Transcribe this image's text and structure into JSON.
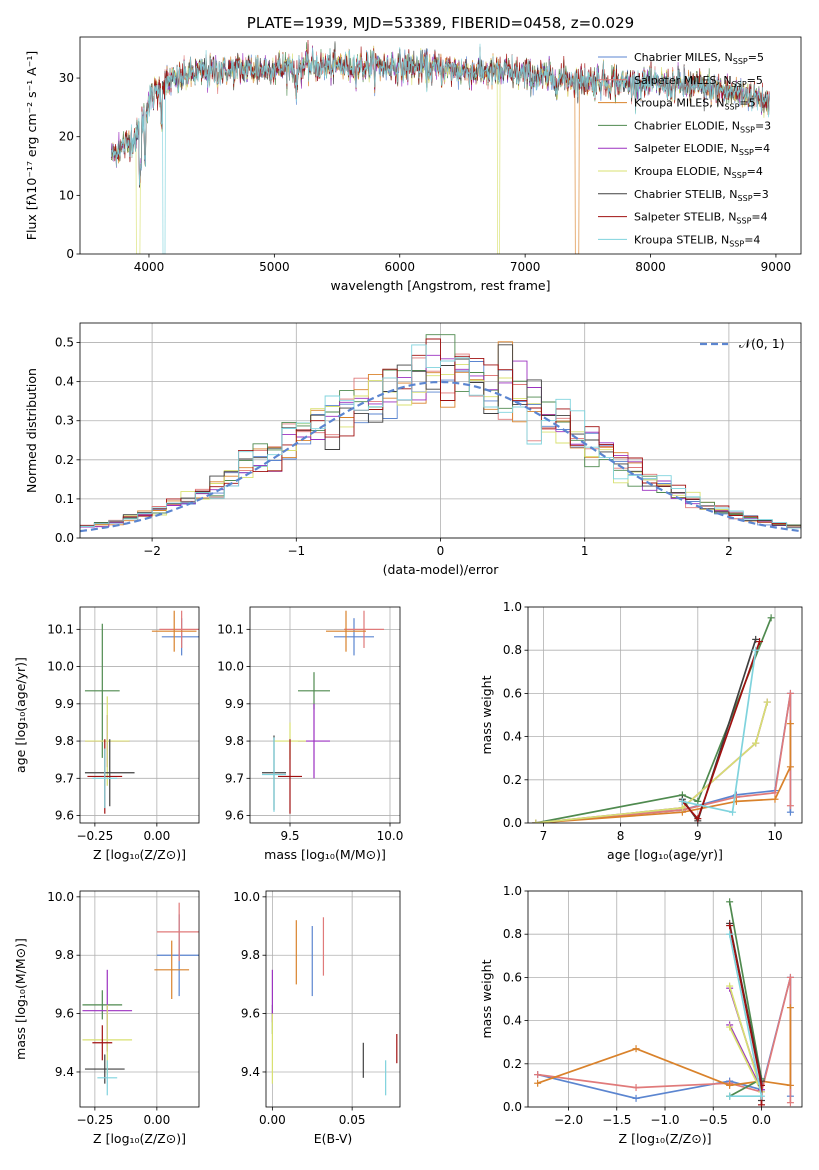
{
  "chart_data": [
    {
      "id": "spectrum",
      "type": "line",
      "title": "PLATE=1939, MJD=53389, FIBERID=0458, z=0.029",
      "xlabel": "wavelength [Angstrom, rest frame]",
      "ylabel": "Flux [fλ10⁻¹⁷ erg cm⁻² s⁻¹ A⁻¹]",
      "xlim": [
        3450,
        9200
      ],
      "ylim": [
        0,
        37
      ],
      "xticks": [
        4000,
        5000,
        6000,
        7000,
        8000,
        9000
      ],
      "yticks": [
        0,
        10,
        20,
        30
      ],
      "legend_position": "top-right",
      "continuum": {
        "x": [
          3700,
          3900,
          4000,
          4100,
          4400,
          4800,
          5200,
          5600,
          6000,
          6400,
          6800,
          7200,
          7600,
          8000,
          8400,
          8800,
          8950
        ],
        "y": [
          17,
          20,
          26,
          29,
          31,
          31.5,
          32,
          32,
          32,
          31.5,
          31,
          30,
          29.5,
          29,
          28.5,
          27,
          26
        ]
      },
      "series": [
        {
          "name": "Chabrier MILES, N",
          "sub": "SSP",
          "suffix": "=5",
          "color": "#5b85d0"
        },
        {
          "name": "Salpeter MILES, N",
          "sub": "SSP",
          "suffix": "=5",
          "color": "#e07a7a"
        },
        {
          "name": "Kroupa MILES, N",
          "sub": "SSP",
          "suffix": "=5",
          "color": "#d9822b"
        },
        {
          "name": "Chabrier ELODIE, N",
          "sub": "SSP",
          "suffix": "=3",
          "color": "#4f8a4f"
        },
        {
          "name": "Salpeter ELODIE, N",
          "sub": "SSP",
          "suffix": "=4",
          "color": "#9b30c0"
        },
        {
          "name": "Kroupa ELODIE, N",
          "sub": "SSP",
          "suffix": "=4",
          "color": "#d8e070"
        },
        {
          "name": "Chabrier STELIB, N",
          "sub": "SSP",
          "suffix": "=3",
          "color": "#404040"
        },
        {
          "name": "Salpeter STELIB, N",
          "sub": "SSP",
          "suffix": "=4",
          "color": "#a01010"
        },
        {
          "name": "Kroupa STELIB, N",
          "sub": "SSP",
          "suffix": "=4",
          "color": "#7fd3dd"
        }
      ]
    },
    {
      "id": "residuals",
      "type": "histogram",
      "xlabel": "(data-model)/error",
      "ylabel": "Normed distribution",
      "xlim": [
        -2.5,
        2.5
      ],
      "ylim": [
        0,
        0.55
      ],
      "xticks": [
        -2,
        -1,
        0,
        1,
        2
      ],
      "yticks": [
        0.0,
        0.1,
        0.2,
        0.3,
        0.4,
        0.5
      ],
      "grid": true,
      "reference_label": "𝒩(0, 1)",
      "reference_color": "#5b85d0",
      "legend_position": "top-right",
      "bin_width": 0.1
    },
    {
      "id": "age_vs_Z",
      "type": "scatter",
      "xlabel": "Z [log₁₀(Z/Z⊙)]",
      "ylabel": "age  [log₁₀(age/yr)]",
      "xlim": [
        -0.31,
        0.17
      ],
      "ylim": [
        9.58,
        10.16
      ],
      "xticks": [
        -0.25,
        0.0
      ],
      "xtick_labels": [
        "−0.25",
        "0.00"
      ],
      "yticks": [
        9.6,
        9.7,
        9.8,
        9.9,
        10.0,
        10.1
      ],
      "grid": true,
      "points": [
        {
          "x": 0.1,
          "y": 10.08,
          "xerr": 0.08,
          "yerr": 0.05,
          "color": "#5b85d0"
        },
        {
          "x": 0.1,
          "y": 10.1,
          "xerr": 0.09,
          "yerr": 0.05,
          "color": "#e07a7a"
        },
        {
          "x": 0.07,
          "y": 10.095,
          "xerr": 0.09,
          "yerr": 0.055,
          "color": "#d9822b"
        },
        {
          "x": -0.22,
          "y": 9.935,
          "xerr": 0.07,
          "yerr": 0.18,
          "color": "#4f8a4f"
        },
        {
          "x": -0.2,
          "y": 9.8,
          "xerr": 0.09,
          "yerr": 0.07,
          "color": "#9b30c0"
        },
        {
          "x": -0.2,
          "y": 9.8,
          "xerr": 0.09,
          "yerr": 0.12,
          "color": "#d8e070"
        },
        {
          "x": -0.19,
          "y": 9.715,
          "xerr": 0.1,
          "yerr": 0.09,
          "color": "#404040"
        },
        {
          "x": -0.21,
          "y": 9.705,
          "xerr": 0.07,
          "yerr": 0.1,
          "color": "#a01010"
        },
        {
          "x": -0.21,
          "y": 9.7,
          "xerr": 0.05,
          "yerr": 0.08,
          "color": "#7fd3dd"
        }
      ]
    },
    {
      "id": "age_vs_mass",
      "type": "scatter",
      "xlabel": "mass [log₁₀(M/M⊙)]",
      "ylabel": "",
      "xlim": [
        9.3,
        10.05
      ],
      "ylim": [
        9.58,
        10.16
      ],
      "xticks": [
        9.5,
        10.0
      ],
      "xtick_labels": [
        "9.5",
        "10.0"
      ],
      "yticks": [
        9.6,
        9.7,
        9.8,
        9.9,
        10.0,
        10.1
      ],
      "grid": true,
      "points": [
        {
          "x": 9.82,
          "y": 10.08,
          "xerr": 0.1,
          "yerr": 0.05,
          "color": "#5b85d0"
        },
        {
          "x": 9.87,
          "y": 10.1,
          "xerr": 0.1,
          "yerr": 0.05,
          "color": "#e07a7a"
        },
        {
          "x": 9.78,
          "y": 10.095,
          "xerr": 0.1,
          "yerr": 0.055,
          "color": "#d9822b"
        },
        {
          "x": 9.62,
          "y": 9.935,
          "xerr": 0.08,
          "yerr": 0.05,
          "color": "#4f8a4f"
        },
        {
          "x": 9.62,
          "y": 9.8,
          "xerr": 0.08,
          "yerr": 0.1,
          "color": "#9b30c0"
        },
        {
          "x": 9.5,
          "y": 9.8,
          "xerr": 0.08,
          "yerr": 0.05,
          "color": "#d8e070"
        },
        {
          "x": 9.42,
          "y": 9.715,
          "xerr": 0.06,
          "yerr": 0.1,
          "color": "#404040"
        },
        {
          "x": 9.5,
          "y": 9.705,
          "xerr": 0.06,
          "yerr": 0.1,
          "color": "#a01010"
        },
        {
          "x": 9.42,
          "y": 9.71,
          "xerr": 0.06,
          "yerr": 0.1,
          "color": "#7fd3dd"
        }
      ]
    },
    {
      "id": "massweight_vs_age",
      "type": "line",
      "xlabel": "age  [log₁₀(age/yr)]",
      "ylabel": "mass weight",
      "xlim": [
        6.8,
        10.35
      ],
      "ylim": [
        0,
        1.0
      ],
      "xticks": [
        7,
        8,
        9,
        10
      ],
      "yticks": [
        0.0,
        0.2,
        0.4,
        0.6,
        0.8,
        1.0
      ],
      "grid": true,
      "series": [
        {
          "color": "#5b85d0",
          "x": [
            6.9,
            8.8,
            9.5,
            10.0,
            10.2,
            10.2
          ],
          "y": [
            0.0,
            0.06,
            0.13,
            0.15,
            0.6,
            0.05
          ]
        },
        {
          "color": "#e07a7a",
          "x": [
            6.9,
            8.8,
            9.5,
            10.0,
            10.2,
            10.2
          ],
          "y": [
            0.0,
            0.06,
            0.12,
            0.14,
            0.6,
            0.08
          ]
        },
        {
          "color": "#d9822b",
          "x": [
            6.9,
            8.8,
            9.5,
            10.0,
            10.2,
            10.2
          ],
          "y": [
            0.0,
            0.05,
            0.1,
            0.11,
            0.26,
            0.46
          ]
        },
        {
          "color": "#4f8a4f",
          "x": [
            6.9,
            8.8,
            9.0,
            9.95
          ],
          "y": [
            0.0,
            0.13,
            0.1,
            0.95
          ]
        },
        {
          "color": "#9b30c0",
          "x": [
            6.9,
            8.8,
            9.75,
            9.9
          ],
          "y": [
            0.0,
            0.07,
            0.37,
            0.56
          ]
        },
        {
          "color": "#d8e070",
          "x": [
            6.9,
            8.8,
            9.75,
            9.9
          ],
          "y": [
            0.0,
            0.07,
            0.37,
            0.56
          ]
        },
        {
          "color": "#404040",
          "x": [
            8.8,
            9.0,
            9.75
          ],
          "y": [
            0.11,
            0.01,
            0.85
          ]
        },
        {
          "color": "#a01010",
          "x": [
            8.8,
            9.0,
            9.8
          ],
          "y": [
            0.1,
            0.02,
            0.84
          ]
        },
        {
          "color": "#7fd3dd",
          "x": [
            8.8,
            9.45,
            9.75
          ],
          "y": [
            0.1,
            0.05,
            0.8
          ]
        }
      ]
    },
    {
      "id": "mass_vs_Z",
      "type": "scatter",
      "xlabel": "Z [log₁₀(Z/Z⊙)]",
      "ylabel": "mass [log₁₀(M/M⊙)]",
      "xlim": [
        -0.31,
        0.17
      ],
      "ylim": [
        9.28,
        10.02
      ],
      "xticks": [
        -0.25,
        0.0
      ],
      "xtick_labels": [
        "−0.25",
        "0.00"
      ],
      "yticks": [
        9.4,
        9.6,
        9.8,
        10.0
      ],
      "grid": true,
      "points": [
        {
          "x": 0.09,
          "y": 9.8,
          "xerr": 0.09,
          "yerr": 0.14,
          "color": "#5b85d0"
        },
        {
          "x": 0.09,
          "y": 9.88,
          "xerr": 0.09,
          "yerr": 0.1,
          "color": "#e07a7a"
        },
        {
          "x": 0.06,
          "y": 9.75,
          "xerr": 0.07,
          "yerr": 0.1,
          "color": "#d9822b"
        },
        {
          "x": -0.22,
          "y": 9.63,
          "xerr": 0.08,
          "yerr": 0.05,
          "color": "#4f8a4f"
        },
        {
          "x": -0.2,
          "y": 9.61,
          "xerr": 0.1,
          "yerr": 0.14,
          "color": "#9b30c0"
        },
        {
          "x": -0.2,
          "y": 9.51,
          "xerr": 0.1,
          "yerr": 0.12,
          "color": "#d8e070"
        },
        {
          "x": -0.21,
          "y": 9.41,
          "xerr": 0.08,
          "yerr": 0.05,
          "color": "#404040"
        },
        {
          "x": -0.22,
          "y": 9.5,
          "xerr": 0.04,
          "yerr": 0.06,
          "color": "#a01010"
        },
        {
          "x": -0.2,
          "y": 9.38,
          "xerr": 0.04,
          "yerr": 0.06,
          "color": "#7fd3dd"
        }
      ]
    },
    {
      "id": "mass_vs_ebv",
      "type": "scatter",
      "xlabel": "E(B-V)",
      "ylabel": "",
      "xlim": [
        -0.004,
        0.08
      ],
      "ylim": [
        9.28,
        10.02
      ],
      "xticks": [
        0.0,
        0.05
      ],
      "xtick_labels": [
        "0.00",
        "0.05"
      ],
      "yticks": [
        9.4,
        9.6,
        9.8,
        10.0
      ],
      "grid": true,
      "points": [
        {
          "x": 0.025,
          "y": 9.78,
          "yerr": 0.12,
          "color": "#5b85d0"
        },
        {
          "x": 0.032,
          "y": 9.83,
          "yerr": 0.1,
          "color": "#e07a7a"
        },
        {
          "x": 0.015,
          "y": 9.81,
          "yerr": 0.11,
          "color": "#d9822b"
        },
        {
          "x": 0.0,
          "y": 9.58,
          "yerr": 0.05,
          "color": "#4f8a4f"
        },
        {
          "x": 0.0,
          "y": 9.66,
          "yerr": 0.09,
          "color": "#9b30c0"
        },
        {
          "x": 0.0,
          "y": 9.48,
          "yerr": 0.12,
          "color": "#d8e070"
        },
        {
          "x": 0.057,
          "y": 9.44,
          "yerr": 0.06,
          "color": "#404040"
        },
        {
          "x": 0.078,
          "y": 9.48,
          "yerr": 0.05,
          "color": "#a01010"
        },
        {
          "x": 0.071,
          "y": 9.38,
          "yerr": 0.06,
          "color": "#7fd3dd"
        }
      ]
    },
    {
      "id": "massweight_vs_Z",
      "type": "line",
      "xlabel": "Z [log₁₀(Z/Z⊙)]",
      "ylabel": "mass weight",
      "xlim": [
        -2.42,
        0.42
      ],
      "ylim": [
        0,
        1.0
      ],
      "xticks": [
        -2.0,
        -1.5,
        -1.0,
        -0.5,
        0.0
      ],
      "xtick_labels": [
        "−2.0",
        "−1.5",
        "−1.0",
        "−0.5",
        "0.0"
      ],
      "yticks": [
        0.0,
        0.2,
        0.4,
        0.6,
        0.8,
        1.0
      ],
      "grid": true,
      "series": [
        {
          "color": "#5b85d0",
          "x": [
            -2.32,
            -1.3,
            -0.33,
            0.0,
            0.3,
            0.3
          ],
          "y": [
            0.15,
            0.04,
            0.12,
            0.08,
            0.6,
            0.05
          ]
        },
        {
          "color": "#e07a7a",
          "x": [
            -2.32,
            -1.3,
            -0.33,
            0.0,
            0.3,
            0.3
          ],
          "y": [
            0.15,
            0.09,
            0.11,
            0.07,
            0.6,
            0.02
          ]
        },
        {
          "color": "#d9822b",
          "x": [
            -2.32,
            -1.3,
            -0.33,
            0.0,
            0.3,
            0.3
          ],
          "y": [
            0.11,
            0.27,
            0.1,
            0.12,
            0.1,
            0.46
          ]
        },
        {
          "color": "#4f8a4f",
          "x": [
            -0.33,
            0.0,
            -0.33
          ],
          "y": [
            0.95,
            0.13,
            0.05
          ]
        },
        {
          "color": "#9b30c0",
          "x": [
            -0.33,
            0.0,
            -0.33
          ],
          "y": [
            0.55,
            0.08,
            0.38
          ]
        },
        {
          "color": "#d8e070",
          "x": [
            -0.33,
            0.0,
            -0.33
          ],
          "y": [
            0.56,
            0.07,
            0.37
          ]
        },
        {
          "color": "#404040",
          "x": [
            -0.33,
            0.0,
            0.0
          ],
          "y": [
            0.85,
            0.12,
            0.03
          ]
        },
        {
          "color": "#a01010",
          "x": [
            -0.33,
            0.0,
            0.0
          ],
          "y": [
            0.84,
            0.1,
            0.01
          ]
        },
        {
          "color": "#7fd3dd",
          "x": [
            -0.33,
            0.0,
            -0.33
          ],
          "y": [
            0.8,
            0.05,
            0.05
          ]
        }
      ]
    }
  ]
}
